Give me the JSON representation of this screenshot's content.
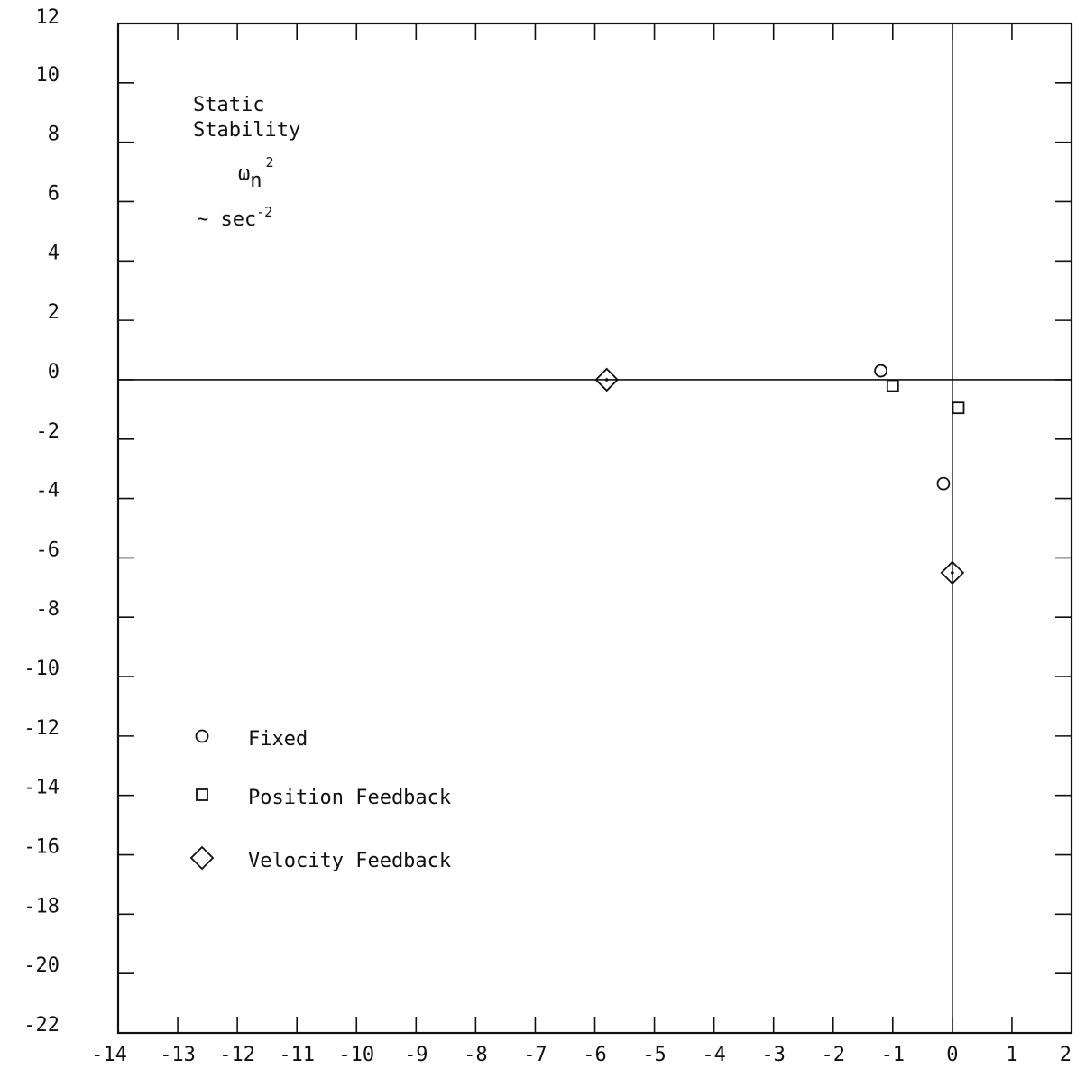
{
  "chart_data": {
    "type": "scatter",
    "title": "",
    "xlabel": "",
    "ylabel": "",
    "xlim": [
      -14,
      2
    ],
    "ylim": [
      -22,
      12
    ],
    "x_ticks": [
      -14,
      -13,
      -12,
      -11,
      -10,
      -9,
      -8,
      -7,
      -6,
      -5,
      -4,
      -3,
      -2,
      -1,
      0,
      1,
      2
    ],
    "y_ticks": [
      12,
      10,
      8,
      6,
      4,
      2,
      0,
      -2,
      -4,
      -6,
      -8,
      -10,
      -12,
      -14,
      -16,
      -18,
      -20,
      -22
    ],
    "x_tick_labels": [
      "-14",
      "-13",
      "-12",
      "-11",
      "-10",
      "-9",
      "-8",
      "-7",
      "-6",
      "-5",
      "-4",
      "-3",
      "-2",
      "-1",
      "0",
      "1",
      "2"
    ],
    "y_tick_labels": [
      "12",
      "10",
      "8",
      "6",
      "4",
      "2",
      "0",
      "-2",
      "-4",
      "-6",
      "-8",
      "-10",
      "-12",
      "-14",
      "-16",
      "-18",
      "-20",
      "-22"
    ],
    "grid": false,
    "zero_lines": true,
    "annotation": {
      "line1": "Static",
      "line2": "Stability",
      "symbol": "ω",
      "subscript": "n",
      "superscript": "2",
      "unit_prefix": "~ sec",
      "unit_exp": "-2"
    },
    "legend_position": "lower-left",
    "series": [
      {
        "name": "Fixed",
        "marker": "circle",
        "points": [
          [
            -1.2,
            0.3
          ],
          [
            -0.15,
            -3.5
          ]
        ]
      },
      {
        "name": "Position Feedback",
        "marker": "square",
        "points": [
          [
            -1.0,
            -0.2
          ],
          [
            0.1,
            -0.95
          ]
        ]
      },
      {
        "name": "Velocity Feedback",
        "marker": "diamond",
        "points": [
          [
            -5.8,
            0.0
          ],
          [
            0.0,
            -6.5
          ]
        ]
      }
    ]
  }
}
